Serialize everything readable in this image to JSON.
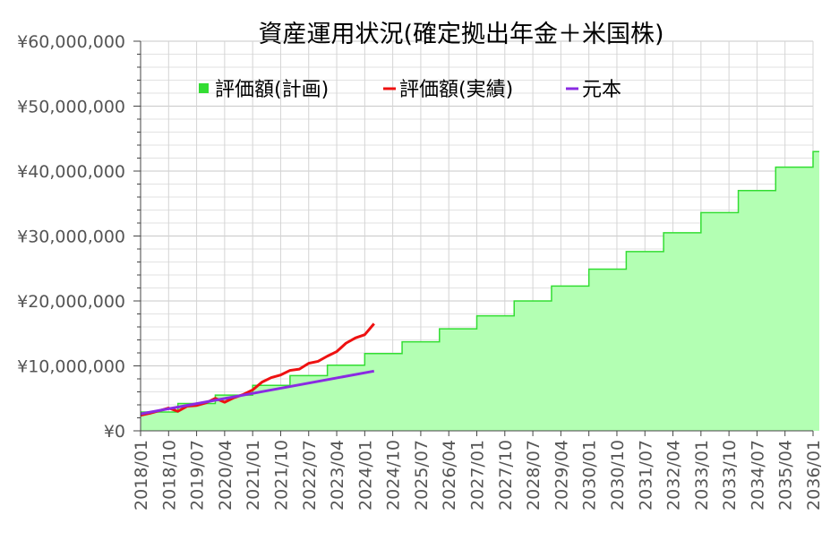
{
  "chart_data": {
    "type": "area",
    "title": "資産運用状況(確定拠出年金＋米国株)",
    "ylim": [
      0,
      60000000
    ],
    "y_ticks": [
      {
        "value": 0,
        "label": "¥0"
      },
      {
        "value": 10000000,
        "label": "¥10,000,000"
      },
      {
        "value": 20000000,
        "label": "¥20,000,000"
      },
      {
        "value": 30000000,
        "label": "¥30,000,000"
      },
      {
        "value": 40000000,
        "label": "¥40,000,000"
      },
      {
        "value": 50000000,
        "label": "¥50,000,000"
      },
      {
        "value": 60000000,
        "label": "¥60,000,000"
      }
    ],
    "x_range": [
      "2018/01",
      "2036/01"
    ],
    "x_ticks": [
      "2018/01",
      "2018/10",
      "2019/07",
      "2020/04",
      "2021/01",
      "2021/10",
      "2022/07",
      "2023/04",
      "2024/01",
      "2024/10",
      "2025/07",
      "2026/04",
      "2027/01",
      "2027/10",
      "2028/07",
      "2029/04",
      "2030/01",
      "2030/10",
      "2031/07",
      "2032/04",
      "2033/01",
      "2033/10",
      "2034/07",
      "2035/04",
      "2036/01"
    ],
    "grid": true,
    "legend_position": "top",
    "series": [
      {
        "name": "評価額(計画)",
        "kind": "step-area",
        "color": "#33dd33",
        "fill": "#b3ffb3",
        "x": [
          "2018/01",
          "2019/01",
          "2020/01",
          "2021/01",
          "2022/01",
          "2023/01",
          "2024/01",
          "2025/01",
          "2026/01",
          "2027/01",
          "2028/01",
          "2029/01",
          "2030/01",
          "2031/01",
          "2032/01",
          "2033/01",
          "2034/01",
          "2035/01",
          "2036/01",
          "2036/03"
        ],
        "values": [
          2900000,
          4200000,
          5500000,
          7000000,
          8500000,
          10100000,
          11900000,
          13700000,
          15700000,
          17700000,
          20000000,
          22300000,
          24900000,
          27600000,
          30500000,
          33600000,
          37000000,
          40600000,
          43000000,
          43000000
        ]
      },
      {
        "name": "評価額(実績)",
        "kind": "line",
        "color": "#ee1111",
        "x": [
          "2018/01",
          "2018/04",
          "2018/07",
          "2018/10",
          "2019/01",
          "2019/04",
          "2019/07",
          "2019/10",
          "2020/01",
          "2020/04",
          "2020/07",
          "2020/10",
          "2021/01",
          "2021/04",
          "2021/07",
          "2021/10",
          "2022/01",
          "2022/04",
          "2022/07",
          "2022/10",
          "2023/01",
          "2023/04",
          "2023/07",
          "2023/10",
          "2024/01",
          "2024/04"
        ],
        "values": [
          2400000,
          2700000,
          3100000,
          3500000,
          3000000,
          3800000,
          3900000,
          4300000,
          5000000,
          4400000,
          5100000,
          5600000,
          6300000,
          7500000,
          8200000,
          8600000,
          9300000,
          9500000,
          10400000,
          10700000,
          11500000,
          12200000,
          13500000,
          14300000,
          14800000,
          16500000
        ]
      },
      {
        "name": "元本",
        "kind": "line",
        "color": "#8a2be2",
        "x": [
          "2018/01",
          "2024/04"
        ],
        "values": [
          2600000,
          9200000
        ]
      }
    ]
  }
}
